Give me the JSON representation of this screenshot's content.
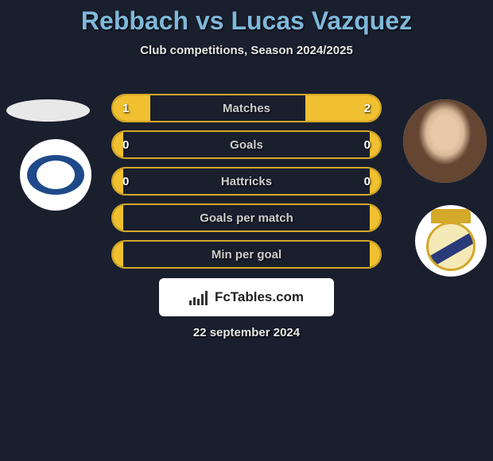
{
  "title": "Rebbach vs Lucas Vazquez",
  "subtitle": "Club competitions, Season 2024/2025",
  "date": "22 september 2024",
  "logo_text": "FcTables.com",
  "colors": {
    "background": "#1a1f2e",
    "title_color": "#7eb8da",
    "text_color": "#e8e8e8",
    "bar_fill": "#f0c030",
    "bar_border": "#d4a828",
    "logo_bg": "#ffffff"
  },
  "stats": [
    {
      "label": "Matches",
      "left_val": "1",
      "right_val": "2",
      "left_pct": 14,
      "right_pct": 28
    },
    {
      "label": "Goals",
      "left_val": "0",
      "right_val": "0",
      "left_pct": 4,
      "right_pct": 4
    },
    {
      "label": "Hattricks",
      "left_val": "0",
      "right_val": "0",
      "left_pct": 4,
      "right_pct": 4
    },
    {
      "label": "Goals per match",
      "left_val": "",
      "right_val": "",
      "left_pct": 4,
      "right_pct": 4
    },
    {
      "label": "Min per goal",
      "left_val": "",
      "right_val": "",
      "left_pct": 4,
      "right_pct": 4
    }
  ],
  "player_left": {
    "name": "Rebbach",
    "team": "Deportivo Alaves"
  },
  "player_right": {
    "name": "Lucas Vazquez",
    "team": "Real Madrid"
  }
}
